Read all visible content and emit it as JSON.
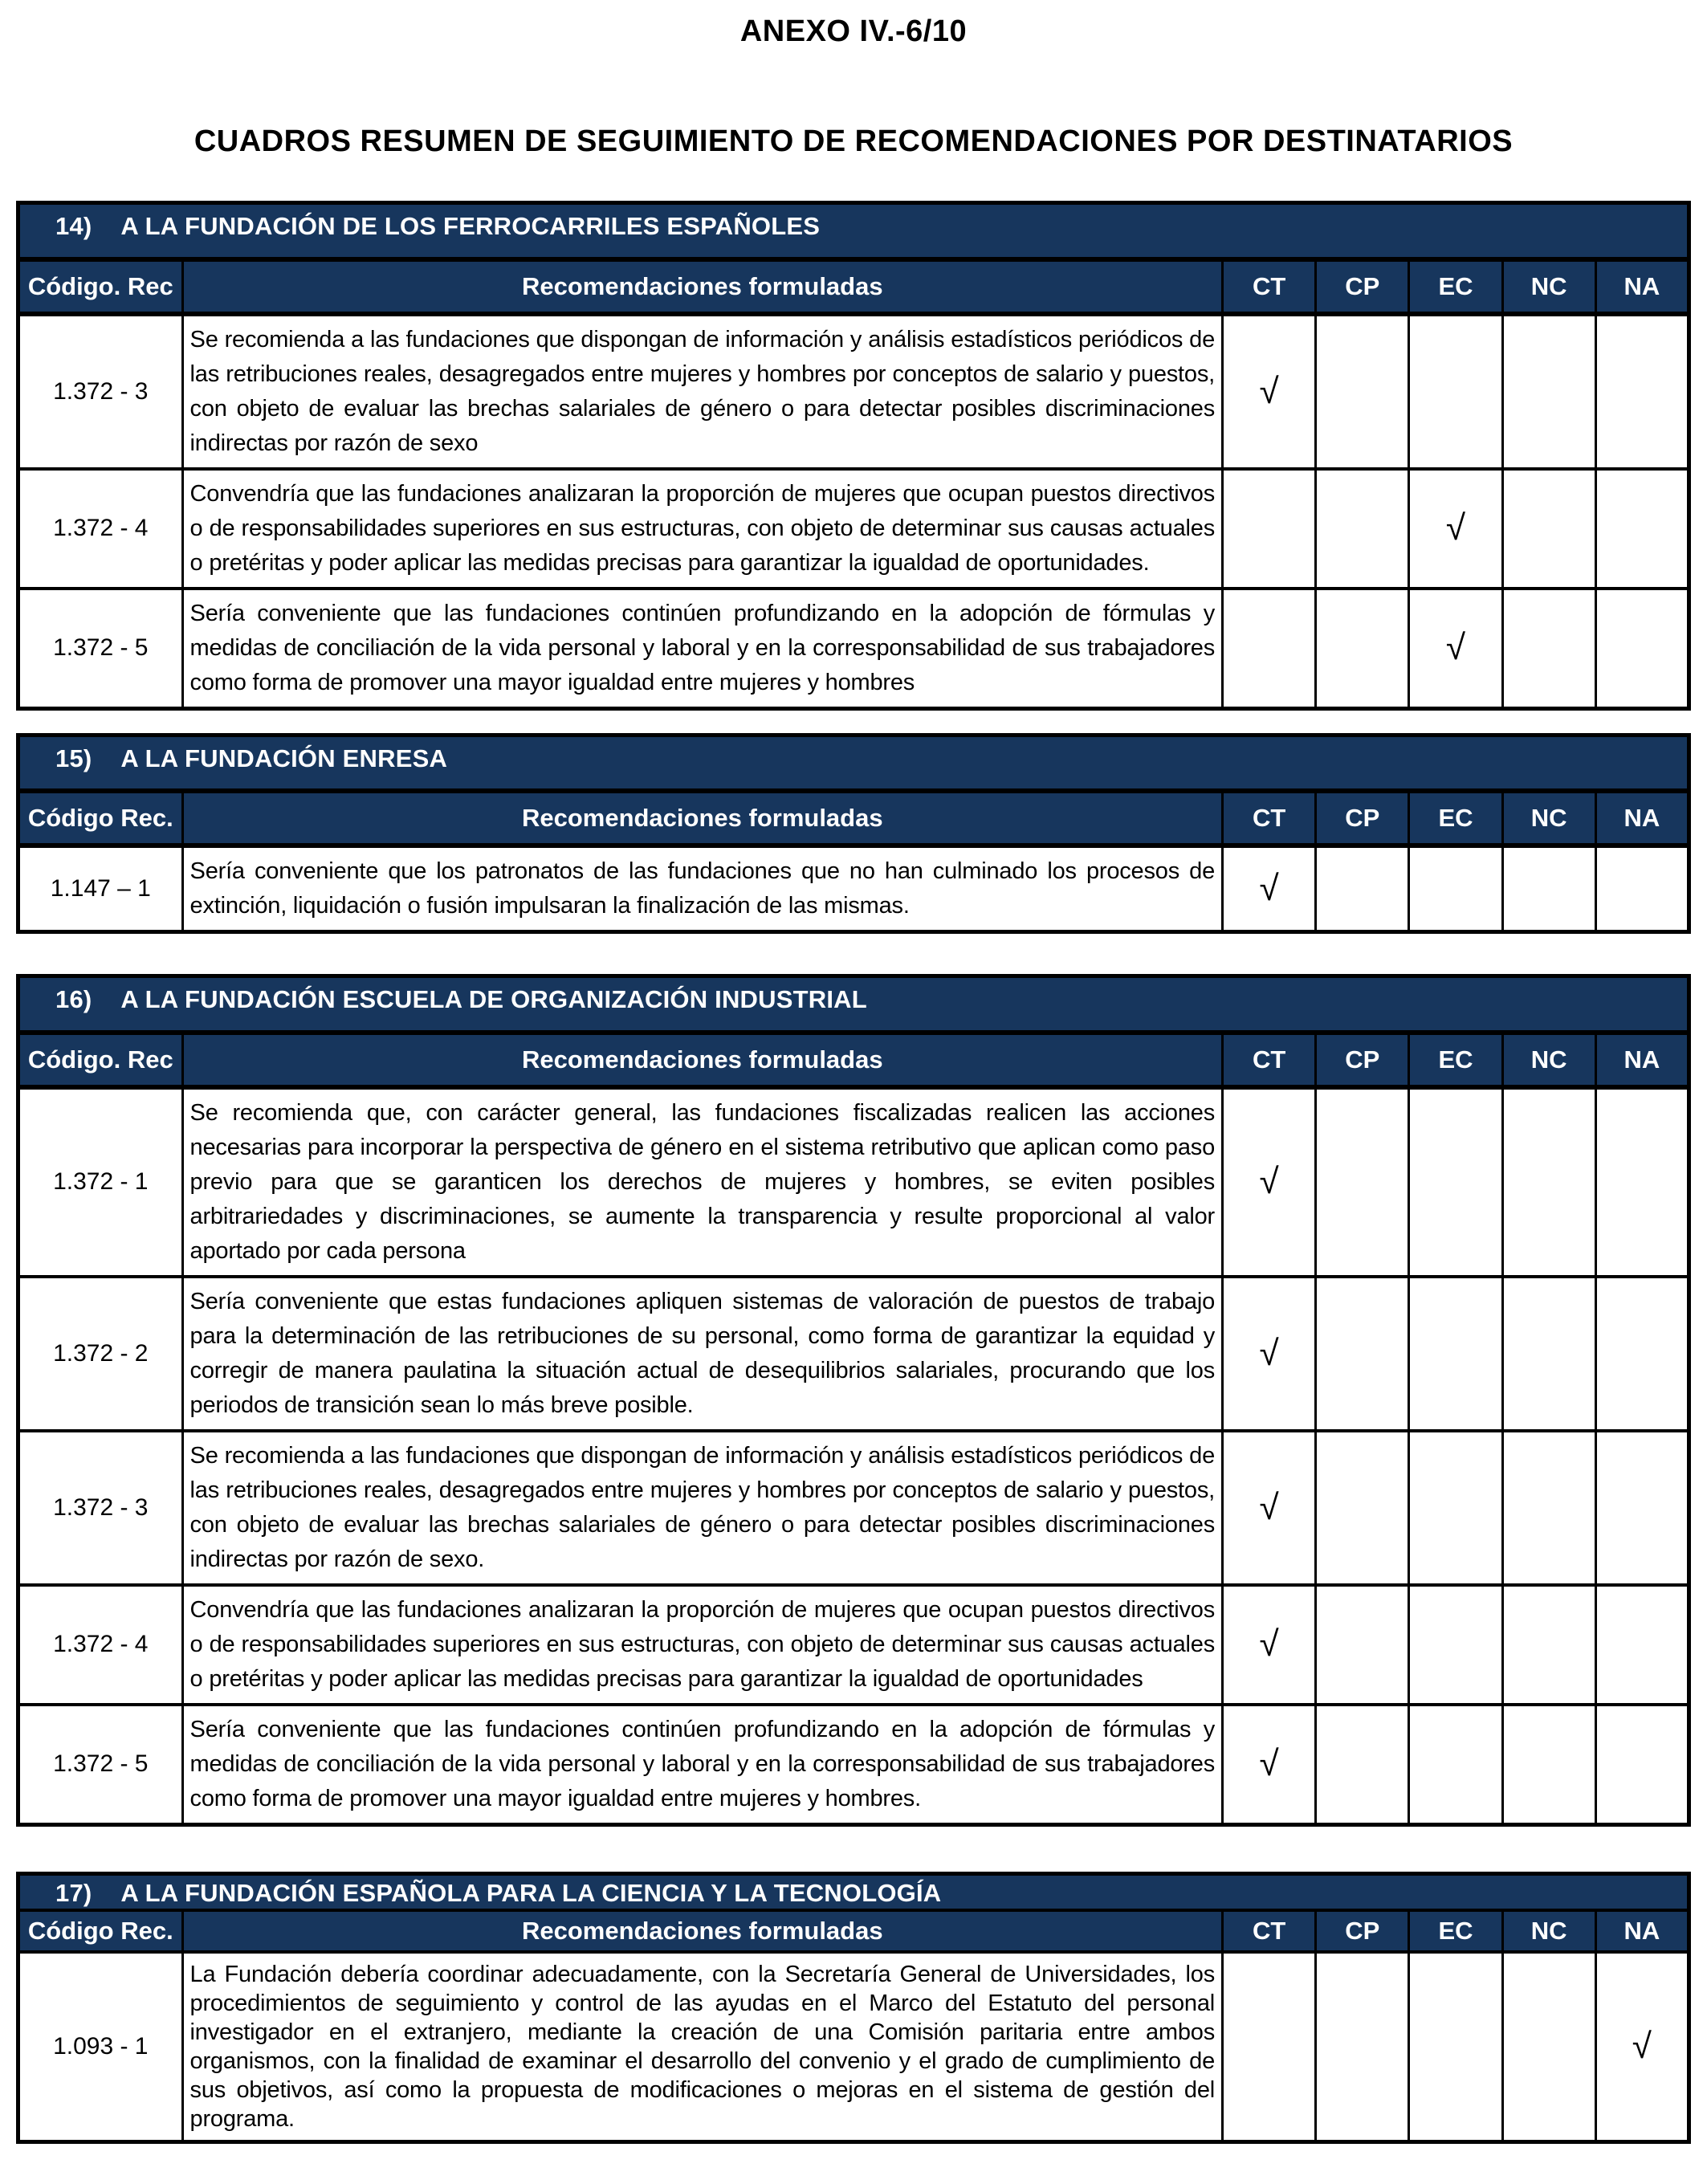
{
  "page": {
    "title": "ANEXO IV.-6/10",
    "subtitle": "CUADROS RESUMEN DE SEGUIMIENTO DE RECOMENDACIONES POR DESTINATARIOS"
  },
  "colors": {
    "header_bg": "#17365D",
    "header_text": "#FFFFFF",
    "border": "#000000"
  },
  "checkmark": "√",
  "status_columns": [
    "CT",
    "CP",
    "EC",
    "NC",
    "NA"
  ],
  "tables": [
    {
      "number": "14)",
      "title": "A LA FUNDACIÓN DE LOS FERROCARRILES ESPAÑOLES",
      "code_header": "Código. Rec",
      "rec_header": "Recomendaciones formuladas",
      "rows": [
        {
          "code": "1.372 - 3",
          "text": "Se recomienda a las fundaciones que dispongan de información y análisis estadísticos periódicos de las retribuciones reales, desagregados entre mujeres y hombres por conceptos de salario y puestos, con objeto de evaluar las brechas salariales de género o para detectar posibles discriminaciones indirectas por razón de sexo",
          "check": "CT"
        },
        {
          "code": "1.372 - 4",
          "text": "Convendría que las fundaciones analizaran la proporción de mujeres que ocupan puestos directivos o de responsabilidades superiores en sus estructuras, con objeto de determinar sus causas actuales o pretéritas y poder aplicar las medidas precisas para garantizar la igualdad de oportunidades.",
          "check": "EC"
        },
        {
          "code": "1.372 - 5",
          "text": "Sería conveniente que las fundaciones continúen profundizando en la adopción de fórmulas y medidas de conciliación de la vida personal y laboral y en la corresponsabilidad de sus trabajadores como forma de promover una mayor igualdad entre mujeres y hombres",
          "check": "EC"
        }
      ]
    },
    {
      "number": "15)",
      "title": "A LA FUNDACIÓN ENRESA",
      "code_header": "Código Rec.",
      "rec_header": "Recomendaciones formuladas",
      "rows": [
        {
          "code": "1.147 – 1",
          "text": "Sería conveniente que los patronatos de las fundaciones que no han culminado los procesos de extinción, liquidación o fusión impulsaran la finalización de las mismas.",
          "check": "CT"
        }
      ]
    },
    {
      "number": "16)",
      "title": "A LA FUNDACIÓN ESCUELA DE ORGANIZACIÓN INDUSTRIAL",
      "code_header": "Código. Rec",
      "rec_header": "Recomendaciones formuladas",
      "rows": [
        {
          "code": "1.372 - 1",
          "text": "Se recomienda que, con carácter general, las fundaciones fiscalizadas realicen las acciones necesarias para incorporar la perspectiva de género en el sistema retributivo que aplican como paso previo para que se garanticen los derechos de mujeres y hombres, se eviten posibles arbitrariedades y discriminaciones, se aumente la transparencia y resulte proporcional al valor aportado por cada persona",
          "check": "CT"
        },
        {
          "code": "1.372 - 2",
          "text": "Sería conveniente que estas fundaciones apliquen sistemas de valoración de puestos de trabajo para la determinación de las retribuciones de su personal, como forma de garantizar la equidad y corregir de manera paulatina la situación actual de desequilibrios salariales, procurando que los periodos de transición sean lo más breve posible.",
          "check": "CT"
        },
        {
          "code": "1.372 - 3",
          "text": "Se recomienda a las fundaciones que dispongan de información y análisis estadísticos periódicos de las retribuciones reales, desagregados entre mujeres y hombres por conceptos de salario y puestos, con objeto de evaluar las brechas salariales de género o para detectar posibles discriminaciones indirectas por razón de sexo.",
          "check": "CT"
        },
        {
          "code": "1.372 - 4",
          "text": "Convendría que las fundaciones analizaran la proporción de mujeres que ocupan puestos directivos o de responsabilidades superiores en sus estructuras, con objeto de determinar sus causas actuales o pretéritas y poder aplicar las medidas precisas para garantizar la igualdad de oportunidades",
          "check": "CT"
        },
        {
          "code": "1.372 - 5",
          "text": "Sería conveniente que las fundaciones continúen profundizando en la adopción de fórmulas y medidas de conciliación de la vida personal y laboral y en la corresponsabilidad de sus trabajadores como forma de promover una mayor igualdad entre mujeres y hombres.",
          "check": "CT"
        }
      ]
    },
    {
      "number": "17)",
      "title": "A LA FUNDACIÓN ESPAÑOLA PARA LA CIENCIA Y LA TECNOLOGÍA",
      "code_header": "Código Rec.",
      "rec_header": "Recomendaciones formuladas",
      "rows": [
        {
          "code": "1.093 - 1",
          "text": "La Fundación debería coordinar adecuadamente, con la Secretaría General de Universidades, los procedimientos de seguimiento y control de las ayudas en el Marco del Estatuto del personal investigador en el extranjero, mediante la creación de una Comisión paritaria entre ambos organismos, con la finalidad de examinar el desarrollo del convenio y el grado de cumplimiento de sus objetivos, así como la propuesta de modificaciones o mejoras en el sistema de gestión del programa.",
          "check": "NA"
        }
      ]
    }
  ]
}
